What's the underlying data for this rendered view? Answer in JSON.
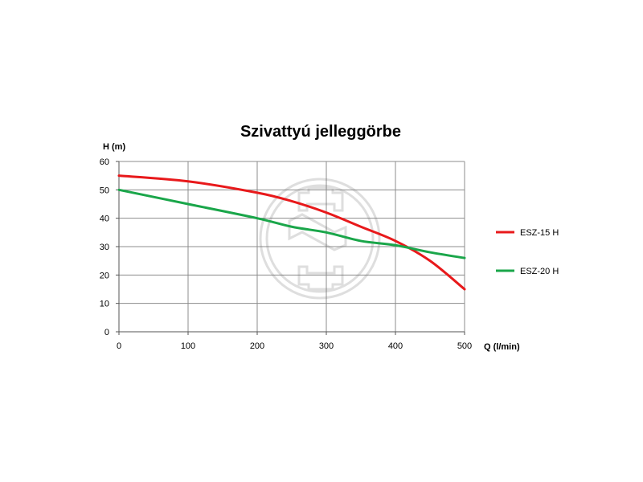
{
  "chart_data": {
    "type": "line",
    "title": "Szivattyú jelleggörbe",
    "xlabel": "Q (l/min)",
    "ylabel": "H (m)",
    "xlim": [
      0,
      500
    ],
    "ylim": [
      0,
      60
    ],
    "x_ticks": [
      0,
      100,
      200,
      300,
      400,
      500
    ],
    "y_ticks": [
      0,
      10,
      20,
      30,
      40,
      50,
      60
    ],
    "grid": true,
    "legend_position": "right",
    "series": [
      {
        "name": "ESZ-15 H",
        "color": "#e8191b",
        "points": [
          [
            0,
            55
          ],
          [
            100,
            53
          ],
          [
            200,
            49
          ],
          [
            250,
            46
          ],
          [
            300,
            42
          ],
          [
            350,
            37
          ],
          [
            400,
            32
          ],
          [
            450,
            25
          ],
          [
            500,
            15
          ]
        ]
      },
      {
        "name": "ESZ-20 H",
        "color": "#1aa64a",
        "points": [
          [
            0,
            50
          ],
          [
            100,
            45
          ],
          [
            200,
            40
          ],
          [
            250,
            37
          ],
          [
            300,
            35
          ],
          [
            350,
            32
          ],
          [
            400,
            30.5
          ],
          [
            450,
            28
          ],
          [
            500,
            26
          ]
        ]
      }
    ]
  }
}
